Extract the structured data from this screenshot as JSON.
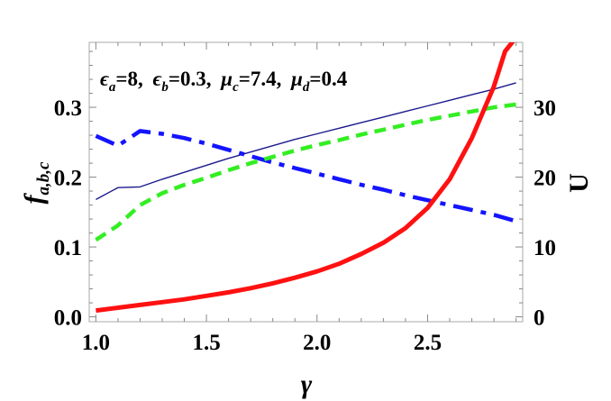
{
  "chart_data": {
    "type": "line",
    "xlabel": "γ",
    "ylabel_left": "f",
    "ylabel_left_sub": "a,b,c",
    "ylabel_right": "U",
    "annotation": {
      "ea_sym": "ϵ",
      "ea_sub": "a",
      "ea_val": "=8,",
      "eb_sym": "ϵ",
      "eb_sub": "b",
      "eb_val": "=0.3,",
      "mc_sym": "μ",
      "mc_sub": "c",
      "mc_val": "=7.4,",
      "md_sym": "μ",
      "md_sub": "d",
      "md_val": "=0.4"
    },
    "xlim": [
      0.97,
      2.93
    ],
    "ylim_left": [
      -0.007,
      0.393
    ],
    "ylim_right": [
      -0.7,
      39.3
    ],
    "x_ticks": [
      {
        "value": 1.0,
        "label": "1.0"
      },
      {
        "value": 1.5,
        "label": "1.5"
      },
      {
        "value": 2.0,
        "label": "2.0"
      },
      {
        "value": 2.5,
        "label": "2.5"
      }
    ],
    "y_left_ticks": [
      {
        "value": 0.0,
        "label": "0.0"
      },
      {
        "value": 0.1,
        "label": "0.1"
      },
      {
        "value": 0.2,
        "label": "0.2"
      },
      {
        "value": 0.3,
        "label": "0.3"
      }
    ],
    "y_right_ticks": [
      {
        "value": 0,
        "label": "0"
      },
      {
        "value": 10,
        "label": "10"
      },
      {
        "value": 20,
        "label": "20"
      },
      {
        "value": 30,
        "label": "30"
      }
    ],
    "series": [
      {
        "axis": "left",
        "color": "#1a1a8c",
        "dash": "",
        "width": 1.4,
        "x": [
          1.0,
          1.1,
          1.2,
          1.3,
          1.4,
          1.5,
          1.6,
          1.7,
          1.8,
          1.9,
          2.0,
          2.1,
          2.2,
          2.3,
          2.4,
          2.5,
          2.6,
          2.7,
          2.8,
          2.9
        ],
        "y": [
          0.168,
          0.185,
          0.186,
          0.197,
          0.207,
          0.217,
          0.227,
          0.236,
          0.245,
          0.254,
          0.262,
          0.27,
          0.278,
          0.286,
          0.294,
          0.302,
          0.31,
          0.318,
          0.326,
          0.335
        ]
      },
      {
        "axis": "left",
        "color": "#1414ff",
        "dash": "22 9 6 9",
        "width": 4.5,
        "x": [
          1.0,
          1.1,
          1.2,
          1.3,
          1.4,
          1.5,
          1.6,
          1.7,
          1.8,
          1.9,
          2.0,
          2.1,
          2.2,
          2.3,
          2.4,
          2.5,
          2.6,
          2.7,
          2.8,
          2.9
        ],
        "y": [
          0.259,
          0.245,
          0.266,
          0.262,
          0.256,
          0.248,
          0.239,
          0.23,
          0.221,
          0.213,
          0.205,
          0.197,
          0.189,
          0.182,
          0.174,
          0.167,
          0.16,
          0.153,
          0.146,
          0.137
        ]
      },
      {
        "axis": "left",
        "color": "#33ee22",
        "dash": "13 8",
        "width": 4.5,
        "x": [
          1.0,
          1.1,
          1.2,
          1.3,
          1.4,
          1.5,
          1.6,
          1.7,
          1.8,
          1.9,
          2.0,
          2.1,
          2.2,
          2.3,
          2.4,
          2.5,
          2.6,
          2.7,
          2.8,
          2.9
        ],
        "y": [
          0.11,
          0.131,
          0.16,
          0.177,
          0.189,
          0.199,
          0.21,
          0.22,
          0.229,
          0.238,
          0.246,
          0.253,
          0.261,
          0.268,
          0.275,
          0.282,
          0.288,
          0.294,
          0.3,
          0.304
        ]
      },
      {
        "axis": "right",
        "color": "#ff1111",
        "dash": "",
        "width": 5,
        "x": [
          1.0,
          1.1,
          1.2,
          1.3,
          1.4,
          1.5,
          1.6,
          1.7,
          1.8,
          1.9,
          2.0,
          2.1,
          2.2,
          2.3,
          2.4,
          2.5,
          2.6,
          2.7,
          2.8,
          2.85,
          2.9
        ],
        "y": [
          0.9,
          1.3,
          1.7,
          2.1,
          2.5,
          3.0,
          3.5,
          4.1,
          4.8,
          5.6,
          6.5,
          7.6,
          9.0,
          10.6,
          12.7,
          15.6,
          19.7,
          25.6,
          33.0,
          38.0,
          40.0
        ]
      }
    ]
  }
}
